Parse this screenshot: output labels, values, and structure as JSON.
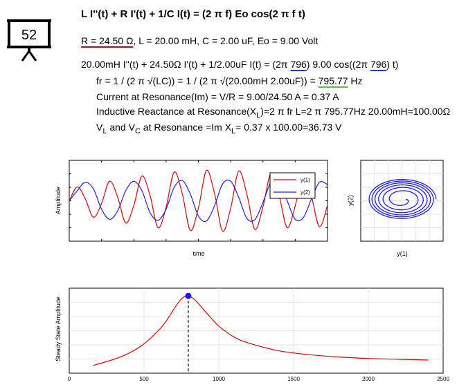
{
  "badge": {
    "number": "52",
    "icon": "presentation-board-icon"
  },
  "header": {
    "title": "L I''(t) + R I'(t) + 1/C I(t) = (2 π f) Eo cos(2 π f t)",
    "r_param": "R = 24.50 Ω",
    "other_params": ", L = 20.00 mH, C = 2.00 uF, Eo = 9.00 Volt"
  },
  "equations": {
    "eq1_a": "20.00mH I''(t) + 24.50Ω I'(t) + 1/2.00uF I(t) = (2π ",
    "eq1_f1": "796",
    "eq1_b": ") 9.00 cos((2π ",
    "eq1_f2": "796",
    "eq1_c": ") t)",
    "fr_a": "fr = 1 / (2 π √(LC)) = 1 / (2 π √(20.00mH 2.00uF)) = ",
    "fr_value": "795.77",
    "fr_unit": " Hz",
    "current": "Current at Resonance(Im) = V/R = 9.00/24.50 A = 0.37 A",
    "xl_a": "Inductive Reactance at Resonance(X",
    "xl_sub": "L",
    "xl_b": ")=2 π fr L=2 π 795.77Hz 20.00mH=100.00Ω",
    "v_a": "V",
    "v_sub1": "L",
    "v_b": " and V",
    "v_sub2": "C",
    "v_c": " at Resonance =Im X",
    "v_sub3": "L",
    "v_d": "= 0.37 x 100.00=36.73 V"
  },
  "colors": {
    "red": "#e00000",
    "blue": "#1a1aee",
    "green": "#66bb44"
  },
  "chart_data": [
    {
      "type": "line",
      "title": "",
      "xlabel": "time",
      "ylabel": "Amplitude",
      "legend": "top-right",
      "grid": false,
      "ylim": [
        -1.2,
        1.2
      ],
      "series": [
        {
          "name": "y(1)",
          "color": "#e00000",
          "x": [
            0,
            0.5,
            1,
            1.5,
            2,
            2.5,
            3,
            3.5,
            4,
            4.5,
            5,
            5.5,
            6,
            6.5,
            7,
            7.5,
            8,
            8.5,
            9,
            9.5,
            10,
            10.5,
            11,
            11.5,
            12,
            12.5,
            13,
            13.5,
            14,
            14.5,
            15,
            15.5,
            16
          ],
          "values": [
            0.0,
            0.41,
            0.05,
            -0.49,
            -0.08,
            0.58,
            0.11,
            -0.66,
            -0.14,
            0.73,
            0.17,
            -0.8,
            -0.19,
            0.85,
            0.21,
            -0.88,
            -0.22,
            0.9,
            0.22,
            -0.9,
            -0.22,
            0.88,
            0.2,
            -0.85,
            -0.18,
            0.82,
            0.16,
            -0.8,
            -0.15,
            0.78,
            0.14,
            -0.77,
            -0.13
          ]
        },
        {
          "name": "y(2)",
          "color": "#1a1aee",
          "x": [
            0,
            0.5,
            1,
            1.5,
            2,
            2.5,
            3,
            3.5,
            4,
            4.5,
            5,
            5.5,
            6,
            6.5,
            7,
            7.5,
            8,
            8.5,
            9,
            9.5,
            10,
            10.5,
            11,
            11.5,
            12,
            12.5,
            13,
            13.5,
            14,
            14.5,
            15,
            15.5,
            16
          ],
          "values": [
            0.0,
            0.3,
            0.55,
            0.35,
            -0.25,
            -0.55,
            -0.3,
            0.3,
            0.58,
            0.3,
            -0.35,
            -0.58,
            -0.25,
            0.4,
            0.6,
            0.2,
            -0.45,
            -0.6,
            -0.15,
            0.5,
            0.58,
            0.1,
            -0.52,
            -0.56,
            -0.05,
            0.55,
            0.53,
            0.0,
            -0.55,
            -0.5,
            0.05,
            0.55,
            0.48
          ]
        }
      ]
    },
    {
      "type": "line",
      "title": "",
      "xlabel": "y(1)",
      "ylabel": "y(2)",
      "grid": true,
      "series": [
        {
          "name": "",
          "color": "#1a1aee",
          "turns": 6,
          "r_start": 0.08,
          "r_end": 0.72
        }
      ]
    },
    {
      "type": "line",
      "title": "",
      "xlabel": "",
      "ylabel": "Steady State Amplitude",
      "grid": true,
      "xlim": [
        0,
        2500
      ],
      "xticks": [
        "0",
        "500",
        "1000",
        "1500",
        "2000",
        "2500"
      ],
      "ylim": [
        0,
        1.1
      ],
      "resonance": {
        "x": 796,
        "y": 1.0,
        "color": "#1a1aee"
      },
      "series": [
        {
          "name": "",
          "color": "#e00000",
          "x": [
            160,
            300,
            400,
            500,
            600,
            650,
            700,
            740,
            770,
            796,
            820,
            850,
            900,
            950,
            1000,
            1100,
            1200,
            1400,
            1600,
            1800,
            2000,
            2200,
            2400
          ],
          "values": [
            0.1,
            0.18,
            0.26,
            0.38,
            0.56,
            0.68,
            0.83,
            0.94,
            0.99,
            1.0,
            0.98,
            0.93,
            0.82,
            0.71,
            0.61,
            0.47,
            0.39,
            0.29,
            0.24,
            0.21,
            0.19,
            0.18,
            0.17
          ]
        }
      ]
    }
  ]
}
